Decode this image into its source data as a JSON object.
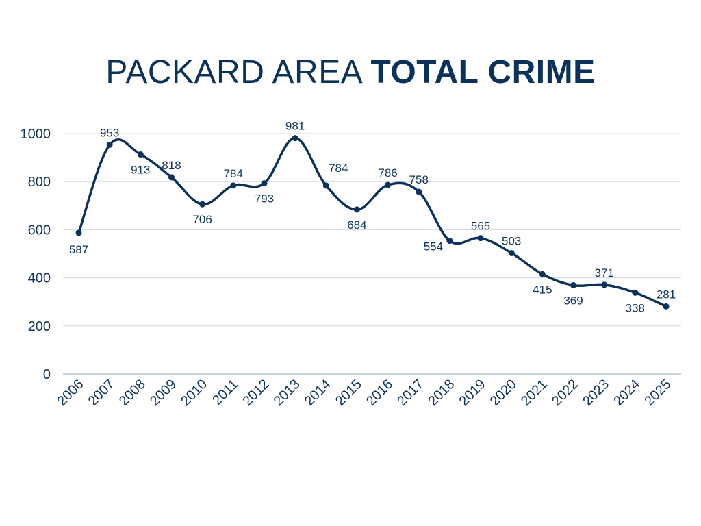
{
  "chart_data": {
    "type": "line",
    "title_prefix": "PACKARD AREA",
    "title_emphasis": "TOTAL CRIME",
    "xlabel": "",
    "ylabel": "",
    "categories": [
      "2006",
      "2007",
      "2008",
      "2009",
      "2010",
      "2011",
      "2012",
      "2013",
      "2014",
      "2015",
      "2016",
      "2017",
      "2018",
      "2019",
      "2020",
      "2021",
      "2022",
      "2023",
      "2024",
      "2025"
    ],
    "values": [
      587,
      953,
      913,
      818,
      706,
      784,
      793,
      981,
      784,
      684,
      786,
      758,
      554,
      565,
      503,
      415,
      369,
      371,
      338,
      281
    ],
    "ylim": [
      0,
      1000
    ],
    "yticks": [
      0,
      200,
      400,
      600,
      800,
      1000
    ],
    "grid": "horizontal",
    "smooth": true,
    "data_labels": true,
    "legend": "none",
    "colors": {
      "line": "#0d3259",
      "grid": "#d3d8de",
      "text": "#0d3259"
    }
  }
}
